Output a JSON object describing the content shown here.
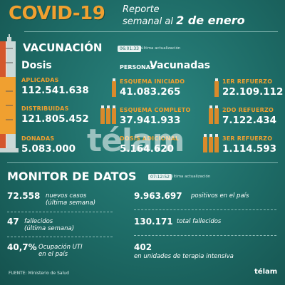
{
  "header": {
    "title": "COVID-19",
    "subtitle_line1": "Reporte",
    "subtitle_line2": "semanal al",
    "date": "2 de enero"
  },
  "vacunacion": {
    "title": "VACUNACIÓN",
    "time": "06:01:33",
    "update_label": "última actualización",
    "dosis_head": "Dosis",
    "personas_prefix": "PERSONAS",
    "personas_head": "Vacunadas",
    "aplicadas_label": "APLICADAS",
    "aplicadas_value": "112.541.638",
    "distribuidas_label": "DISTRIBUIDAS",
    "distribuidas_value": "121.805.452",
    "donadas_label": "DONADAS",
    "donadas_value": "5.083.000",
    "esquema_iniciado_label": "ESQUEMA INICIADO",
    "esquema_iniciado_value": "41.083.265",
    "esquema_completo_label": "ESQUEMA COMPLETO",
    "esquema_completo_value": "37.941.933",
    "dosis_adicional_label": "DOSIS ADICIONAL",
    "dosis_adicional_value": "5.164.620",
    "refuerzo1_label": "1ER REFUERZO",
    "refuerzo1_value": "22.109.112",
    "refuerzo2_label": "2DO REFUERZO",
    "refuerzo2_value": "7.122.434",
    "refuerzo3_label": "3ER REFUERZO",
    "refuerzo3_value": "1.114.593"
  },
  "monitor": {
    "title": "MONITOR DE DATOS",
    "time": "07:12:52",
    "update_label": "última actualización",
    "casos_value": "72.558",
    "casos_desc1": "nuevos casos",
    "casos_desc2": "(última semana)",
    "fallecidos_value": "47",
    "fallecidos_desc1": "fallecidos",
    "fallecidos_desc2": "(última semana)",
    "uti_value": "40,7%",
    "uti_desc1": "Ocupación UTI",
    "uti_desc2": "en el país",
    "positivos_value": "9.963.697",
    "positivos_desc": "positivos en el país",
    "total_fallecidos_value": "130.171",
    "total_fallecidos_desc": "total fallecidos",
    "terapia_value": "402",
    "terapia_desc": "en unidades de terapia intensiva"
  },
  "footer": {
    "source": "FUENTE: Ministerio de Salud",
    "logo": "télam",
    "watermark": "télam"
  },
  "colors": {
    "background": "#1f6f6a",
    "accent_orange": "#f0a030",
    "text": "#ffffff"
  }
}
